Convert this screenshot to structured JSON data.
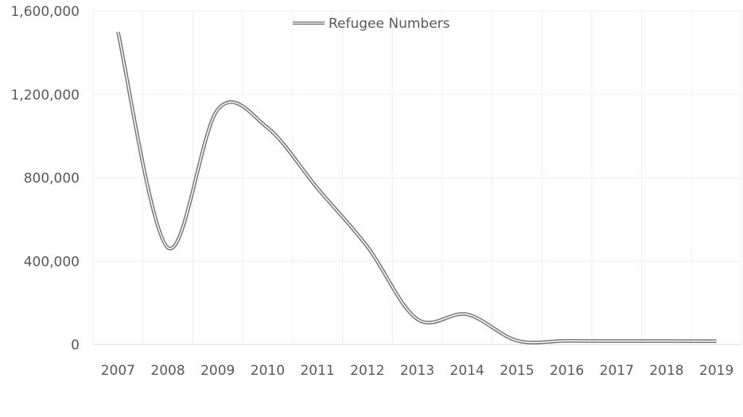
{
  "chart_data": {
    "type": "line",
    "title": "",
    "xlabel": "",
    "ylabel": "",
    "categories": [
      "2007",
      "2008",
      "2009",
      "2010",
      "2011",
      "2012",
      "2013",
      "2014",
      "2015",
      "2016",
      "2017",
      "2018",
      "2019"
    ],
    "series": [
      {
        "name": "Refugee Numbers",
        "values": [
          1500000,
          465000,
          1128000,
          1040000,
          750000,
          470000,
          122000,
          145000,
          19000,
          18000,
          17000,
          17000,
          16000
        ]
      }
    ],
    "ylim": [
      0,
      1600000
    ],
    "yticks": [
      "0",
      "400,000",
      "800,000",
      "1,200,000",
      "1,600,000"
    ],
    "ytick_values": [
      0,
      400000,
      800000,
      1200000,
      1600000
    ],
    "grid": true,
    "smoothed": true,
    "legend": "top-center",
    "colors": {
      "line": "#767676",
      "grid": "#efefef",
      "text": "#595959"
    }
  }
}
